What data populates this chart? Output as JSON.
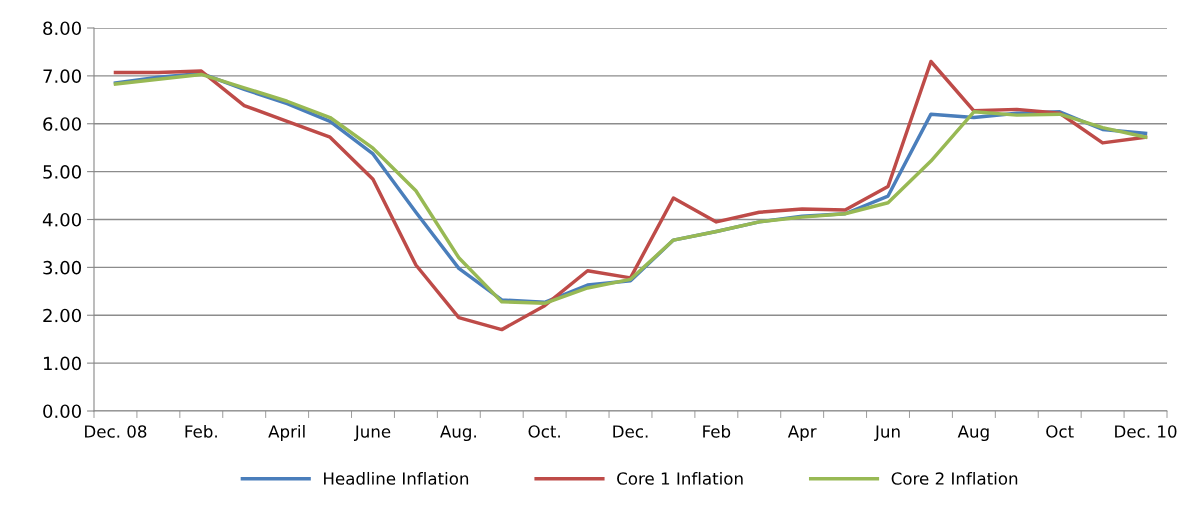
{
  "chart_data": {
    "type": "line",
    "categories": [
      "Dec. 08",
      null,
      "Feb.",
      null,
      "April",
      null,
      "June",
      null,
      "Aug.",
      null,
      "Oct.",
      null,
      "Dec.",
      null,
      "Feb",
      null,
      "Apr",
      null,
      "Jun",
      null,
      "Aug",
      null,
      "Oct",
      null,
      "Dec. 10"
    ],
    "series": [
      {
        "name": "Headline Inflation",
        "color": "#4a7ebb",
        "values": [
          6.85,
          6.97,
          7.05,
          6.72,
          6.42,
          6.05,
          5.37,
          4.15,
          2.98,
          2.32,
          2.27,
          2.63,
          2.72,
          3.57,
          3.75,
          3.95,
          4.07,
          4.12,
          4.49,
          6.2,
          6.13,
          6.22,
          6.25,
          5.88,
          5.8
        ]
      },
      {
        "name": "Core 1 Inflation",
        "color": "#be4b48",
        "values": [
          7.07,
          7.07,
          7.1,
          6.38,
          6.05,
          5.72,
          4.84,
          3.05,
          1.95,
          1.7,
          2.2,
          2.93,
          2.78,
          4.45,
          3.95,
          4.15,
          4.22,
          4.2,
          4.69,
          7.3,
          6.27,
          6.3,
          6.22,
          5.6,
          5.72
        ]
      },
      {
        "name": "Core 2 Inflation",
        "color": "#98b954",
        "values": [
          6.83,
          6.93,
          7.03,
          6.75,
          6.47,
          6.13,
          5.49,
          4.6,
          3.2,
          2.28,
          2.25,
          2.57,
          2.75,
          3.57,
          3.75,
          3.95,
          4.05,
          4.12,
          4.35,
          5.22,
          6.25,
          6.18,
          6.2,
          5.92,
          5.72
        ]
      }
    ],
    "ylim": [
      0,
      8
    ],
    "yticks": [
      {
        "value": 0,
        "label": "0.00"
      },
      {
        "value": 1,
        "label": "1.00"
      },
      {
        "value": 2,
        "label": "2.00"
      },
      {
        "value": 3,
        "label": "3.00"
      },
      {
        "value": 4,
        "label": "4.00"
      },
      {
        "value": 5,
        "label": "5.00"
      },
      {
        "value": 6,
        "label": "6.00"
      },
      {
        "value": 7,
        "label": "7.00"
      },
      {
        "value": 8,
        "label": "8.00"
      }
    ],
    "grid": "y",
    "legend": "bottom",
    "marker": "none",
    "line_style": "solid"
  }
}
